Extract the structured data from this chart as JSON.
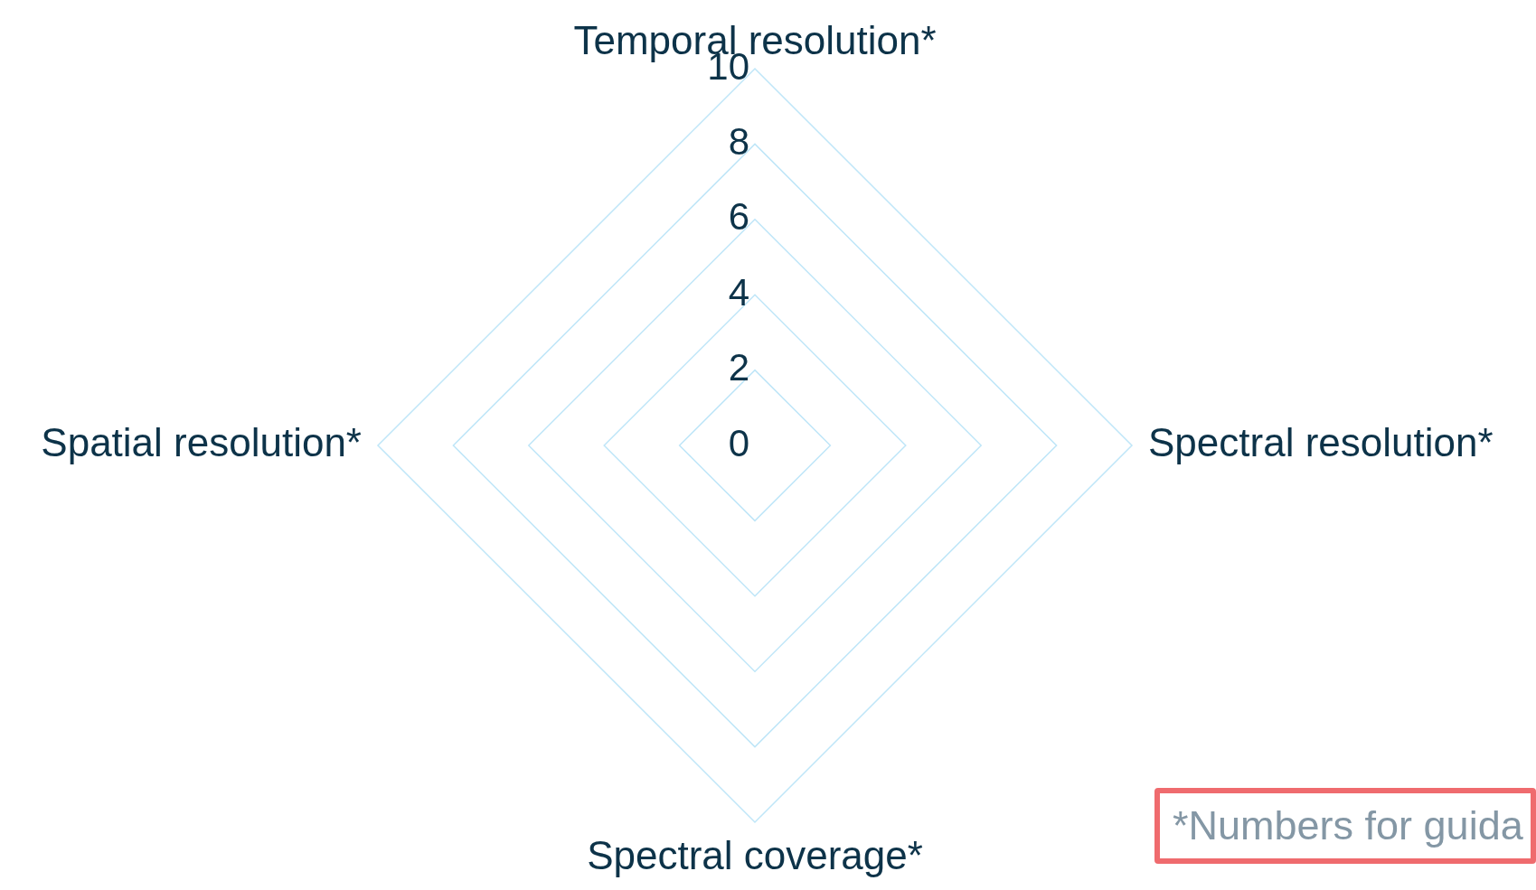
{
  "chart_data": {
    "type": "radar",
    "categories": [
      "Temporal resolution*",
      "Spectral resolution*",
      "Spectral coverage*",
      "Spatial resolution*"
    ],
    "ylim": [
      0,
      10
    ],
    "yticks": [
      0,
      2,
      4,
      6,
      8,
      10
    ],
    "grid": true,
    "annotations": [
      "*Numbers for guida"
    ]
  }
}
